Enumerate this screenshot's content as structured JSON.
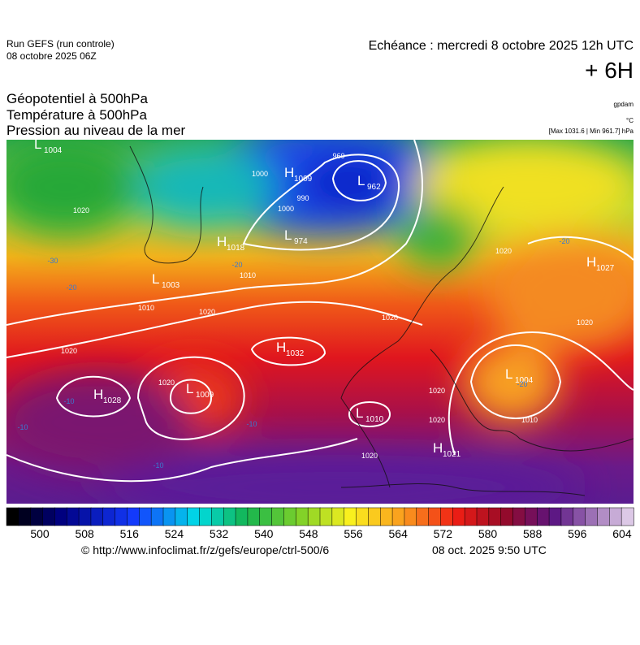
{
  "header": {
    "run": "Run GEFS (run controle)",
    "run_date": "08 octobre 2025 06Z",
    "forecast": "Echéance : mercredi 8 octobre 2025 12h UTC",
    "lead": "+ 6H"
  },
  "fields": [
    "Géopotentiel à 500hPa",
    "Température à 500hPa",
    "Pression au niveau de la mer"
  ],
  "units": {
    "geopotential": "gpdam",
    "temperature": "°C",
    "pressure": "[Max 1031.6 | Min 961.7] hPa"
  },
  "pressure_centers": [
    {
      "type": "L",
      "value": "1004"
    },
    {
      "type": "H",
      "value": "1009"
    },
    {
      "type": "L",
      "value": "962"
    },
    {
      "type": "H",
      "value": "1018"
    },
    {
      "type": "L",
      "value": "974"
    },
    {
      "type": "L",
      "value": "1003"
    },
    {
      "type": "H",
      "value": "1027"
    },
    {
      "type": "H",
      "value": "1032"
    },
    {
      "type": "H",
      "value": "1028"
    },
    {
      "type": "L",
      "value": "1009"
    },
    {
      "type": "L",
      "value": "1004"
    },
    {
      "type": "L",
      "value": "1010"
    },
    {
      "type": "H",
      "value": "1021"
    }
  ],
  "isobar_labels": [
    "1020",
    "1010",
    "1020",
    "1020",
    "1020",
    "1000",
    "1000",
    "990",
    "960",
    "1010",
    "1020",
    "1020",
    "1020",
    "1020",
    "1010",
    "1020",
    "1020"
  ],
  "temperature_labels": [
    "-30",
    "-20",
    "-20",
    "-20",
    "-10",
    "-10",
    "-10",
    "-10",
    "-20"
  ],
  "colorbar": {
    "labels": [
      "500",
      "508",
      "516",
      "524",
      "532",
      "540",
      "548",
      "556",
      "564",
      "572",
      "580",
      "588",
      "596",
      "604"
    ]
  },
  "footer": {
    "source": "© http://www.infoclimat.fr/z/gefs/europe/ctrl-500/6",
    "timestamp": "08 oct. 2025  9:50 UTC"
  }
}
